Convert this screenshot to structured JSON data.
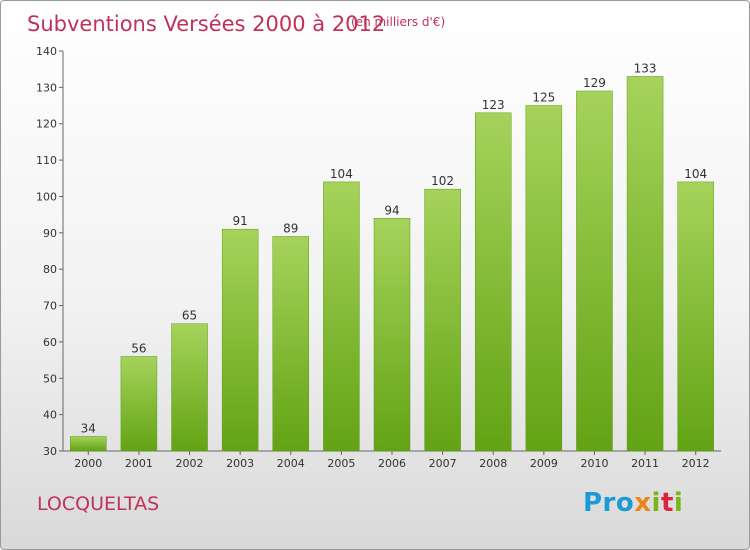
{
  "header": {
    "title": "Subventions Versées 2000 à 2012",
    "unit": "(en milliers d'€)"
  },
  "footer": {
    "place": "LOCQUELTAS",
    "logo": {
      "part1": "Pro",
      "part2": "x",
      "part3": "i",
      "part4": "t",
      "part5": "i"
    }
  },
  "colors": {
    "title": "#c0315b",
    "bar_light": "#a6d35b",
    "bar_dark": "#62a314"
  },
  "chart_data": {
    "type": "bar",
    "title": "Subventions Versées 2000 à 2012",
    "subtitle": "(en milliers d'€)",
    "categories": [
      "2000",
      "2001",
      "2002",
      "2003",
      "2004",
      "2005",
      "2006",
      "2007",
      "2008",
      "2009",
      "2010",
      "2011",
      "2012"
    ],
    "values": [
      34,
      56,
      65,
      91,
      89,
      104,
      94,
      102,
      123,
      125,
      129,
      133,
      104
    ],
    "ylim": [
      30,
      140
    ],
    "yticks": [
      30,
      40,
      50,
      60,
      70,
      80,
      90,
      100,
      110,
      120,
      130,
      140
    ],
    "grid": false,
    "legend": "none"
  }
}
